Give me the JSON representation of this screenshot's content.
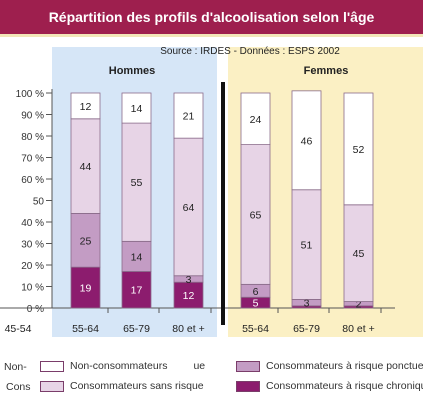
{
  "title": "Répartition des profils d'alcoolisation selon l'âge",
  "source": "Source : IRDES - Données : ESPS 2002",
  "colors": {
    "title_bg": "#9e1f4e",
    "hommes_bg": "#d6e6f7",
    "femmes_bg": "#fbf0c4",
    "non": "#ffffff",
    "sans": "#e7d4e6",
    "ponctuel": "#c39cc4",
    "chronique": "#8c1c6e"
  },
  "chart_data": {
    "type": "bar",
    "stacked": true,
    "percent": true,
    "y_ticks": [
      "100 %",
      "90 %",
      "80 %",
      "70 %",
      "60 %",
      "50",
      "40 %",
      "30 %",
      "20 %",
      "10 %",
      "0 %"
    ],
    "ylim": [
      0,
      100
    ],
    "left_cut_label": "45-54",
    "groups": [
      {
        "name": "Hommes",
        "categories": [
          "55-64",
          "65-79",
          "80 et +"
        ],
        "series": [
          {
            "name": "Consommateurs à risque chronique",
            "values": [
              19,
              17,
              12
            ],
            "labels": [
              "19",
              "17",
              "12"
            ]
          },
          {
            "name": "Consommateurs à risque ponctuel",
            "values": [
              25,
              14,
              3
            ],
            "labels": [
              "25",
              "14",
              "3"
            ]
          },
          {
            "name": "Consommateurs sans risque",
            "values": [
              44,
              55,
              64
            ],
            "labels": [
              "44",
              "55",
              "64"
            ]
          },
          {
            "name": "Non-consommateurs",
            "values": [
              12,
              14,
              21
            ],
            "labels": [
              "12",
              "14",
              "21"
            ]
          }
        ]
      },
      {
        "name": "Femmes",
        "categories": [
          "55-64",
          "65-79",
          "80 et +"
        ],
        "series": [
          {
            "name": "Consommateurs à risque chronique",
            "values": [
              5,
              1,
              1
            ],
            "labels": [
              "5",
              "",
              ""
            ]
          },
          {
            "name": "Consommateurs à risque ponctuel",
            "values": [
              6,
              3,
              2
            ],
            "labels": [
              "6",
              "3",
              "2"
            ]
          },
          {
            "name": "Consommateurs sans risque",
            "values": [
              65,
              51,
              45
            ],
            "labels": [
              "65",
              "51",
              "45"
            ]
          },
          {
            "name": "Non-consommateurs",
            "values": [
              24,
              46,
              52
            ],
            "labels": [
              "24",
              "46",
              "52"
            ]
          }
        ]
      }
    ]
  },
  "legend": {
    "non": "Non-consommateurs",
    "sans": "Consommateurs sans risque",
    "ponctuel": "Consommateurs à risque ponctue",
    "chronique": "Consommateurs à risque chroniqu",
    "cut_non": "Non-",
    "cut_cons": "Cons",
    "cut_tail": "ue"
  }
}
